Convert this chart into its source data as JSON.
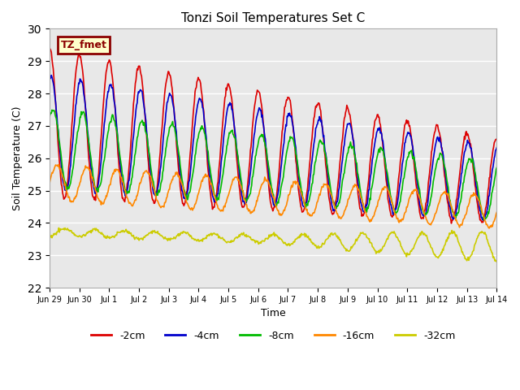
{
  "title": "Tonzi Soil Temperatures Set C",
  "xlabel": "Time",
  "ylabel": "Soil Temperature (C)",
  "ylim": [
    22.0,
    30.0
  ],
  "yticks": [
    22.0,
    23.0,
    24.0,
    25.0,
    26.0,
    27.0,
    28.0,
    29.0,
    30.0
  ],
  "label_text": "TZ_fmet",
  "label_bg": "#ffffcc",
  "label_border": "#8b0000",
  "bg_color": "#e8e8e8",
  "lines": {
    "-2cm": {
      "color": "#dd0000",
      "lw": 1.2
    },
    "-4cm": {
      "color": "#0000cc",
      "lw": 1.2
    },
    "-8cm": {
      "color": "#00bb00",
      "lw": 1.2
    },
    "-16cm": {
      "color": "#ff8800",
      "lw": 1.2
    },
    "-32cm": {
      "color": "#cccc00",
      "lw": 1.2
    }
  },
  "legend_order": [
    "-2cm",
    "-4cm",
    "-8cm",
    "-16cm",
    "-32cm"
  ],
  "x_tick_labels": [
    "Jun 29",
    "Jun 30",
    "Jul 1",
    "Jul 2",
    "Jul 3",
    "Jul 4",
    "Jul 5",
    "Jul 6",
    "Jul 7",
    "Jul 8",
    "Jul 9",
    "Jul 10",
    "Jul 11",
    "Jul 12",
    "Jul 13",
    "Jul 14"
  ],
  "n_days": 15,
  "pts_per_day": 48
}
